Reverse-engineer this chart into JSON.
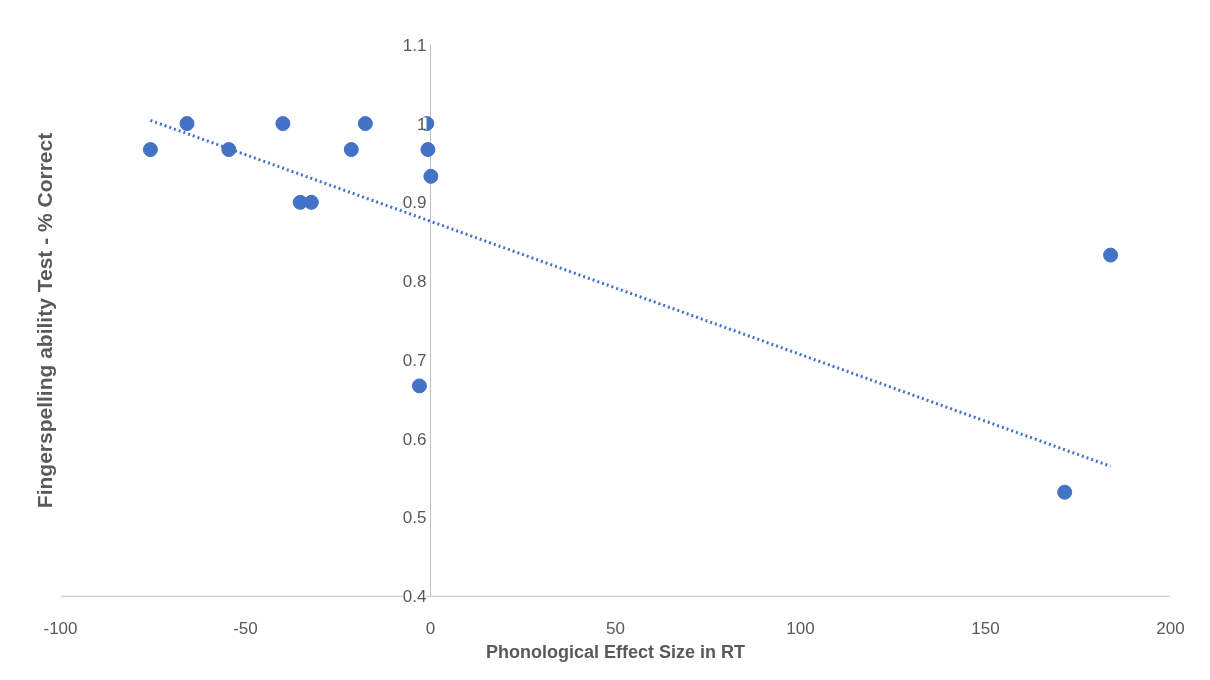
{
  "chart_data": {
    "type": "scatter",
    "xlabel": "Phonological Effect Size in RT",
    "ylabel": "Fingerspelling ability Test - % Correct",
    "xlim": [
      -100,
      200
    ],
    "xticks": [
      -100,
      -50,
      0,
      50,
      100,
      150,
      200
    ],
    "ylim": [
      0.4,
      1.1
    ],
    "yticks": [
      0.4,
      0.5,
      0.6,
      0.7,
      0.8,
      0.9,
      1,
      1.1
    ],
    "grid": false,
    "series": [
      {
        "color": "#4472c4",
        "marker": "circle",
        "x": [
          -75.7,
          -65.8,
          -54.5,
          -39.9,
          -35.2,
          -32.2,
          -21.4,
          -17.6,
          -1.0,
          -0.7,
          0.1,
          -3.0,
          171.4,
          183.8
        ],
        "values": [
          0.967,
          1.0,
          0.967,
          1.0,
          0.9,
          0.9,
          0.967,
          1.0,
          1.0,
          0.967,
          0.933,
          0.667,
          0.532,
          0.833
        ]
      },
      {
        "type": "line",
        "color": "#4472c4",
        "line_style": "dotted",
        "x": [
          -75.7,
          183.8
        ],
        "values": [
          1.004,
          0.565
        ]
      }
    ]
  }
}
